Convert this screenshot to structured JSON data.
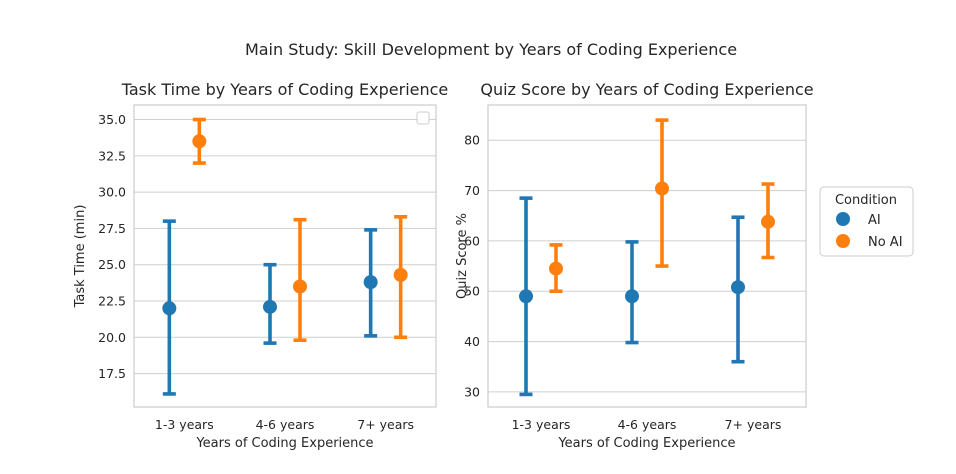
{
  "suptitle": "Main Study: Skill Development by Years of Coding Experience",
  "colors": {
    "AI": "#1f77b4",
    "No AI": "#ff7f0e"
  },
  "chart_data": [
    {
      "type": "scatter",
      "title": "Task Time by Years of Coding Experience",
      "xlabel": "Years of Coding Experience",
      "ylabel": "Task Time (min)",
      "categories": [
        "1-3 years",
        "4-6 years",
        "7+ years"
      ],
      "ylim": [
        15.2,
        36.0
      ],
      "yticks": [
        17.5,
        20.0,
        22.5,
        25.0,
        27.5,
        30.0,
        32.5,
        35.0
      ],
      "ytick_labels": [
        "17.5",
        "20.0",
        "22.5",
        "25.0",
        "27.5",
        "30.0",
        "32.5",
        "35.0"
      ],
      "grid": true,
      "legend": "empty box, top-right",
      "series": [
        {
          "name": "AI",
          "values": [
            22.0,
            22.1,
            23.8
          ],
          "lower": [
            16.1,
            19.6,
            20.1
          ],
          "upper": [
            28.0,
            25.0,
            27.4
          ]
        },
        {
          "name": "No AI",
          "values": [
            33.5,
            23.5,
            24.3
          ],
          "lower": [
            32.0,
            19.8,
            20.0
          ],
          "upper": [
            35.0,
            28.1,
            28.3
          ]
        }
      ]
    },
    {
      "type": "scatter",
      "title": "Quiz Score by Years of Coding Experience",
      "xlabel": "Years of Coding Experience",
      "ylabel": "Quiz Score %",
      "categories": [
        "1-3 years",
        "4-6 years",
        "7+ years"
      ],
      "ylim": [
        27.0,
        87.0
      ],
      "yticks": [
        30,
        40,
        50,
        60,
        70,
        80
      ],
      "ytick_labels": [
        "30",
        "40",
        "50",
        "60",
        "70",
        "80"
      ],
      "grid": true,
      "legend": "right, outside plot",
      "series": [
        {
          "name": "AI",
          "values": [
            49.0,
            49.0,
            50.8
          ],
          "lower": [
            29.5,
            39.8,
            36.0
          ],
          "upper": [
            68.5,
            59.8,
            64.7
          ]
        },
        {
          "name": "No AI",
          "values": [
            54.5,
            70.4,
            63.8
          ],
          "lower": [
            50.0,
            55.0,
            56.7
          ],
          "upper": [
            59.2,
            84.0,
            71.3
          ]
        }
      ]
    }
  ],
  "legend": {
    "title": "Condition",
    "items": [
      {
        "label": "AI",
        "series": "AI"
      },
      {
        "label": "No AI",
        "series": "No AI"
      }
    ]
  }
}
